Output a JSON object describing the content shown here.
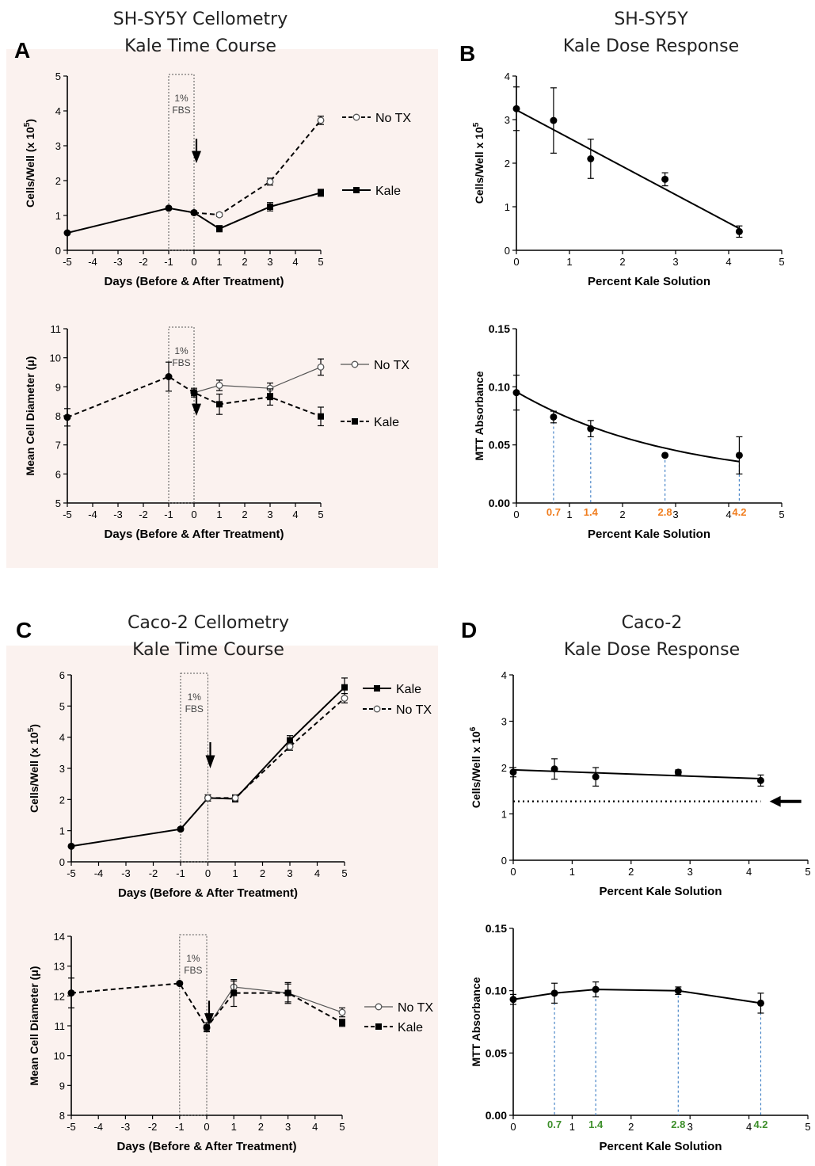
{
  "titles": {
    "A": [
      "SH-SY5Y Cellometry",
      "Kale Time Course"
    ],
    "B": [
      "SH-SY5Y",
      "Kale Dose Response"
    ],
    "C": [
      "Caco-2 Cellometry",
      "Kale Time Course"
    ],
    "D": [
      "Caco-2",
      "Kale Dose Response"
    ]
  },
  "panel_labels": {
    "A": "A",
    "B": "B",
    "C": "C",
    "D": "D"
  },
  "colors": {
    "bg": "#fbf2ef",
    "line": "#000000",
    "dash_blue": "#4a86c8",
    "orange": "#f07d1e",
    "green": "#3d8f2b"
  },
  "chart_data": [
    {
      "id": "A1",
      "type": "line",
      "ylabel": "Cells/Well (x 10",
      "ylabel_exp": "5",
      "ylabel_end": ")",
      "xlabel": "Days (Before & After Treatment)",
      "xlim": [
        -5,
        5
      ],
      "ylim": [
        0,
        5
      ],
      "xticks": [
        -5,
        -4,
        -3,
        -2,
        -1,
        0,
        1,
        2,
        3,
        4,
        5
      ],
      "yticks": [
        0,
        1,
        2,
        3,
        4,
        5
      ],
      "box_label": [
        "1%",
        "FBS"
      ],
      "box_x": [
        -1,
        0
      ],
      "arrow_x": 0,
      "series": [
        {
          "name": "No TX",
          "style": "dashed",
          "marker": "open",
          "x": [
            0,
            1,
            3,
            5
          ],
          "y": [
            1.08,
            1.02,
            1.97,
            3.73
          ],
          "err": [
            0,
            0.05,
            0.1,
            0.12
          ]
        },
        {
          "name": "Kale",
          "style": "solid",
          "marker": "filled",
          "x": [
            -5,
            -1,
            0,
            1,
            3,
            5
          ],
          "y": [
            0.5,
            1.21,
            1.08,
            0.62,
            1.25,
            1.65
          ],
          "err": [
            0,
            0.04,
            0.05,
            0.09,
            0.12,
            0.1
          ]
        }
      ]
    },
    {
      "id": "A2",
      "type": "line",
      "ylabel": "Mean Cell Diameter (μ)",
      "ylabel_exp": "",
      "ylabel_end": "",
      "xlabel": "Days (Before & After Treatment)",
      "xlim": [
        -5,
        5
      ],
      "ylim": [
        5,
        11
      ],
      "xticks": [
        -5,
        -4,
        -3,
        -2,
        -1,
        0,
        1,
        2,
        3,
        4,
        5
      ],
      "yticks": [
        5,
        6,
        7,
        8,
        9,
        10,
        11
      ],
      "box_label": [
        "1%",
        "FBS"
      ],
      "box_x": [
        -1,
        0
      ],
      "arrow_x": 0,
      "series": [
        {
          "name": "No TX",
          "style": "solid-thin",
          "marker": "open",
          "x": [
            0,
            1,
            3,
            5
          ],
          "y": [
            8.8,
            9.05,
            8.95,
            9.68
          ],
          "err": [
            0.1,
            0.18,
            0.18,
            0.28
          ]
        },
        {
          "name": "Kale",
          "style": "dashed",
          "marker": "filled",
          "x": [
            -5,
            -1,
            0,
            1,
            3,
            5
          ],
          "y": [
            7.95,
            9.35,
            8.8,
            8.4,
            8.65,
            7.98
          ],
          "err": [
            0.3,
            0.5,
            0.15,
            0.35,
            0.28,
            0.32
          ]
        }
      ]
    },
    {
      "id": "B1",
      "type": "scatter",
      "ylabel": "Cells/Well x 10",
      "ylabel_exp": "5",
      "ylabel_end": "",
      "xlabel": "Percent Kale Solution",
      "xlim": [
        0,
        5
      ],
      "ylim": [
        0,
        4
      ],
      "xticks": [
        0,
        1,
        2,
        3,
        4,
        5
      ],
      "yticks": [
        0,
        1,
        2,
        3,
        4
      ],
      "fit": "linear",
      "fit_x": [
        0,
        4.2
      ],
      "fit_y": [
        3.22,
        0.5
      ],
      "series": [
        {
          "name": "",
          "x": [
            0,
            0.7,
            1.4,
            2.8,
            4.2
          ],
          "y": [
            3.25,
            2.98,
            2.1,
            1.63,
            0.43
          ],
          "err": [
            0.5,
            0.75,
            0.45,
            0.15,
            0.13
          ]
        }
      ]
    },
    {
      "id": "B2",
      "type": "scatter",
      "ylabel": "MTT Absorbance",
      "ylabel_exp": "",
      "ylabel_end": "",
      "xlabel": "Percent Kale Solution",
      "xlim": [
        0,
        5
      ],
      "ylim": [
        0,
        0.15
      ],
      "xticks": [
        0,
        1,
        2,
        3,
        4,
        5
      ],
      "yticks": [
        0.0,
        0.05,
        0.1,
        0.15
      ],
      "ytick_labels": [
        "0.00",
        "0.05",
        "0.10",
        "0.15"
      ],
      "fit": "decay",
      "fit_params": {
        "a": 0.0957,
        "k": 0.336,
        "c": 0.0162
      },
      "dose_marks": [
        "0.7",
        "1.4",
        "2.8",
        "4.2"
      ],
      "dose_x": [
        0.7,
        1.4,
        2.8,
        4.2
      ],
      "dose_color": "#f07d1e",
      "series": [
        {
          "name": "",
          "x": [
            0,
            0.7,
            1.4,
            2.8,
            4.2
          ],
          "y": [
            0.095,
            0.074,
            0.064,
            0.041,
            0.041
          ],
          "err": [
            0.015,
            0.005,
            0.007,
            0,
            0.016
          ]
        }
      ]
    },
    {
      "id": "C1",
      "type": "line",
      "ylabel": "Cells/Well (x 10",
      "ylabel_exp": "5",
      "ylabel_end": ")",
      "xlabel": "Days (Before & After Treatment)",
      "xlim": [
        -5,
        5
      ],
      "ylim": [
        0,
        6
      ],
      "xticks": [
        -5,
        -4,
        -3,
        -2,
        -1,
        0,
        1,
        2,
        3,
        4,
        5
      ],
      "yticks": [
        0,
        1,
        2,
        3,
        4,
        5,
        6
      ],
      "box_label": [
        "1%",
        "FBS"
      ],
      "box_x": [
        -1,
        0
      ],
      "arrow_x": 0,
      "series": [
        {
          "name": "Kale",
          "style": "solid",
          "marker": "filled",
          "x": [
            -5,
            -1,
            0,
            1,
            3,
            5
          ],
          "y": [
            0.5,
            1.05,
            2.05,
            2.02,
            3.9,
            5.6
          ],
          "err": [
            0,
            0.05,
            0.1,
            0.1,
            0.15,
            0.3
          ]
        },
        {
          "name": "No TX",
          "style": "dashed",
          "marker": "open",
          "x": [
            0,
            1,
            3,
            5
          ],
          "y": [
            2.05,
            2.05,
            3.7,
            5.25
          ],
          "err": [
            0,
            0.1,
            0.12,
            0.15
          ]
        }
      ]
    },
    {
      "id": "C2",
      "type": "line",
      "ylabel": "Mean Cell Diameter (μ)",
      "ylabel_exp": "",
      "ylabel_end": "",
      "xlabel": "Days (Before & After Treatment)",
      "xlim": [
        -5,
        5
      ],
      "ylim": [
        8,
        14
      ],
      "xticks": [
        -5,
        -4,
        -3,
        -2,
        -1,
        0,
        1,
        2,
        3,
        4,
        5
      ],
      "yticks": [
        8,
        9,
        10,
        11,
        12,
        13,
        14
      ],
      "box_label": [
        "1%",
        "FBS"
      ],
      "box_x": [
        -1,
        0
      ],
      "arrow_x": 0,
      "series": [
        {
          "name": "No TX",
          "style": "solid-thin",
          "marker": "open",
          "x": [
            0,
            1,
            3,
            5
          ],
          "y": [
            10.92,
            12.3,
            12.1,
            11.45
          ],
          "err": [
            0.1,
            0.2,
            0.35,
            0.15
          ]
        },
        {
          "name": "Kale",
          "style": "dashed",
          "marker": "filled",
          "x": [
            -5,
            -1,
            0,
            1,
            3,
            5
          ],
          "y": [
            12.1,
            12.42,
            10.95,
            12.1,
            12.1,
            11.1
          ],
          "err": [
            0.5,
            0.05,
            0.15,
            0.45,
            0.3,
            0.12
          ]
        }
      ]
    },
    {
      "id": "D1",
      "type": "scatter",
      "ylabel": "Cells/Well x 10",
      "ylabel_exp": "6",
      "ylabel_end": "",
      "xlabel": "Percent Kale Solution",
      "xlim": [
        0,
        5
      ],
      "ylim": [
        0,
        4
      ],
      "xticks": [
        0,
        1,
        2,
        3,
        4,
        5
      ],
      "yticks": [
        0,
        1,
        2,
        3,
        4
      ],
      "fit": "linear",
      "fit_x": [
        0,
        4.2
      ],
      "fit_y": [
        1.95,
        1.76
      ],
      "baseline_y": 1.27,
      "baseline_x": [
        0,
        4.2
      ],
      "baseline_arrow": true,
      "series": [
        {
          "name": "",
          "x": [
            0,
            0.7,
            1.4,
            2.8,
            4.2
          ],
          "y": [
            1.9,
            1.97,
            1.8,
            1.9,
            1.72
          ],
          "err": [
            0.1,
            0.22,
            0.2,
            0.05,
            0.12
          ]
        }
      ]
    },
    {
      "id": "D2",
      "type": "line",
      "ylabel": "MTT Absorbance",
      "ylabel_exp": "",
      "ylabel_end": "",
      "xlabel": "Percent Kale Solution",
      "xlim": [
        0,
        5
      ],
      "ylim": [
        0,
        0.15
      ],
      "xticks": [
        0,
        1,
        2,
        3,
        4,
        5
      ],
      "yticks": [
        0.0,
        0.05,
        0.1,
        0.15
      ],
      "ytick_labels": [
        "0.00",
        "0.05",
        "0.10",
        "0.15"
      ],
      "dose_marks": [
        "0.7",
        "1.4",
        "2.8",
        "4.2"
      ],
      "dose_x": [
        0.7,
        1.4,
        2.8,
        4.2
      ],
      "dose_color": "#3d8f2b",
      "series": [
        {
          "name": "",
          "x": [
            0,
            0.7,
            1.4,
            2.8,
            4.2
          ],
          "y": [
            0.093,
            0.098,
            0.101,
            0.1,
            0.09
          ],
          "err": [
            0.004,
            0.008,
            0.006,
            0.003,
            0.008
          ]
        }
      ]
    }
  ]
}
